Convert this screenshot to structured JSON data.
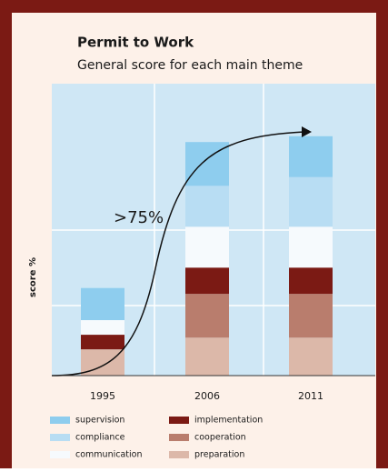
{
  "chart_data": {
    "type": "stacked_bar",
    "title": "Permit to Work",
    "subtitle": "General score for each main theme",
    "ylabel": "score %",
    "annotation": ">75%",
    "categories": [
      "1995",
      "2006",
      "2011"
    ],
    "ylim": [
      0,
      100
    ],
    "grid": true,
    "series": [
      {
        "name": "preparation",
        "color": "#dcb8a9",
        "values": [
          9,
          13,
          13
        ]
      },
      {
        "name": "cooperation",
        "color": "#b97d6d",
        "values": [
          0,
          15,
          15
        ]
      },
      {
        "name": "implementation",
        "color": "#7b1a14",
        "values": [
          5,
          9,
          9
        ]
      },
      {
        "name": "communication",
        "color": "#f6fafd",
        "values": [
          5,
          14,
          14
        ]
      },
      {
        "name": "compliance",
        "color": "#b8ddf3",
        "values": [
          0,
          14,
          17
        ]
      },
      {
        "name": "supervision",
        "color": "#8ecdee",
        "values": [
          11,
          15,
          14
        ]
      }
    ]
  }
}
